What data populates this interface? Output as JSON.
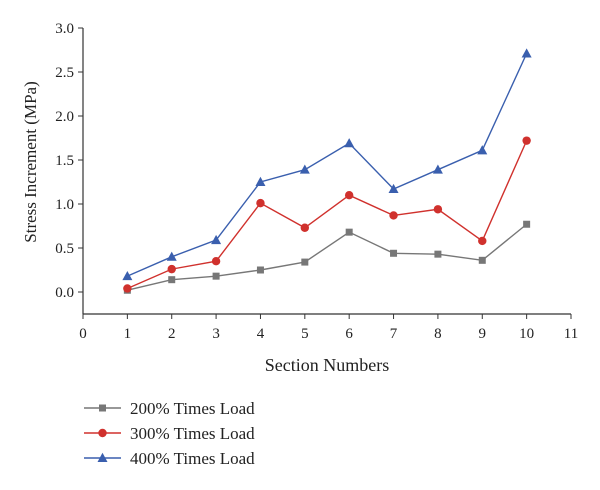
{
  "chart_data": {
    "type": "line",
    "xlabel": "Section Numbers",
    "ylabel": "Stress Increment (MPa)",
    "xlim": [
      0,
      11
    ],
    "ylim": [
      -0.25,
      3.0
    ],
    "xticks": [
      0,
      1,
      2,
      3,
      4,
      5,
      6,
      7,
      8,
      9,
      10,
      11
    ],
    "yticks": [
      0.0,
      0.5,
      1.0,
      1.5,
      2.0,
      2.5,
      3.0
    ],
    "ytick_labels": [
      "0.0",
      "0.5",
      "1.0",
      "1.5",
      "2.0",
      "2.5",
      "3.0"
    ],
    "x": [
      1,
      2,
      3,
      4,
      5,
      6,
      7,
      8,
      9,
      10
    ],
    "grid": false,
    "legend_position": "bottom-left",
    "series": [
      {
        "name": "200% Times Load",
        "color": "#777777",
        "marker": "square",
        "values": [
          0.02,
          0.14,
          0.18,
          0.25,
          0.34,
          0.68,
          0.44,
          0.43,
          0.36,
          0.77
        ]
      },
      {
        "name": "300% Times Load",
        "color": "#d0312d",
        "marker": "circle",
        "values": [
          0.04,
          0.26,
          0.35,
          1.01,
          0.73,
          1.1,
          0.87,
          0.94,
          0.58,
          1.72
        ]
      },
      {
        "name": "400% Times Load",
        "color": "#3a5fae",
        "marker": "triangle",
        "values": [
          0.18,
          0.4,
          0.59,
          1.25,
          1.39,
          1.69,
          1.17,
          1.39,
          1.61,
          2.71
        ]
      }
    ]
  }
}
